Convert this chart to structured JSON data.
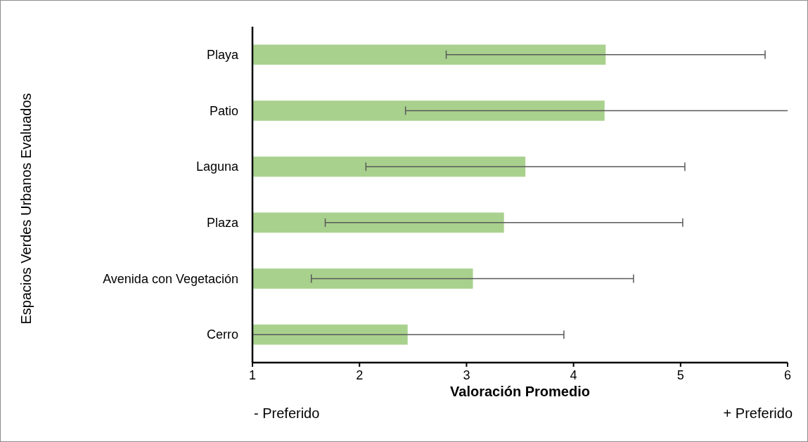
{
  "chart_data": {
    "type": "bar",
    "orientation": "horizontal",
    "categories": [
      "Playa",
      "Patio",
      "Laguna",
      "Plaza",
      "Avenida con Vegetación",
      "Cerro"
    ],
    "values": [
      4.3,
      4.29,
      3.55,
      3.35,
      3.06,
      2.45
    ],
    "errors": [
      [
        2.81,
        5.79
      ],
      [
        2.43,
        6.0
      ],
      [
        2.06,
        5.04
      ],
      [
        1.68,
        5.02
      ],
      [
        1.55,
        4.56
      ],
      [
        1.0,
        3.91
      ]
    ],
    "color": "#a9d18e",
    "xlim": [
      1,
      6
    ],
    "xticks": [
      1,
      2,
      3,
      4,
      5,
      6
    ],
    "xlabel": "Valoración Promedio",
    "ylabel": "Espacios Verdes Urbanos Evaluados",
    "annotations": [
      "- Preferido",
      "+ Preferido"
    ]
  }
}
